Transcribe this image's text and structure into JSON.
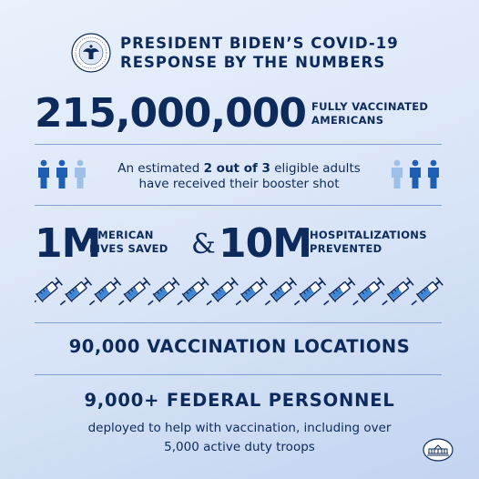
{
  "header": {
    "title_line1": "PRESIDENT BIDEN’S COVID-19",
    "title_line2": "RESPONSE BY THE NUMBERS",
    "seal_icon": "presidential-seal-icon"
  },
  "vaccinated": {
    "number": "215,000,000",
    "label_line1": "FULLY VACCINATED",
    "label_line2": "AMERICANS"
  },
  "booster": {
    "text_prefix": "An estimated ",
    "text_bold": "2 out of 3",
    "text_suffix": " eligible adults",
    "text_line2": "have received their booster shot",
    "people_icon": "person-icon",
    "dark_color": "#1f5fb3",
    "light_color": "#9ec0e6"
  },
  "lives": {
    "number": "1M",
    "label_line1": "AMERICAN",
    "label_line2": "LIVES SAVED",
    "ampersand": "&"
  },
  "hospital": {
    "number": "10M",
    "label_line1": "HOSPITALIZATIONS",
    "label_line2": "PREVENTED"
  },
  "syringe": {
    "icon": "syringe-icon",
    "count": 14
  },
  "locations": {
    "text": "90,000 VACCINATION LOCATIONS"
  },
  "personnel": {
    "title": "9,000+ FEDERAL PERSONNEL",
    "desc_line1": "deployed to help with vaccination, including over",
    "desc_line2": "5,000 active duty troops"
  },
  "footer": {
    "logo_icon": "white-house-icon"
  },
  "colors": {
    "navy": "#0d2a5c",
    "accent_blue": "#1f5fb3",
    "light_blue": "#9ec0e6"
  }
}
